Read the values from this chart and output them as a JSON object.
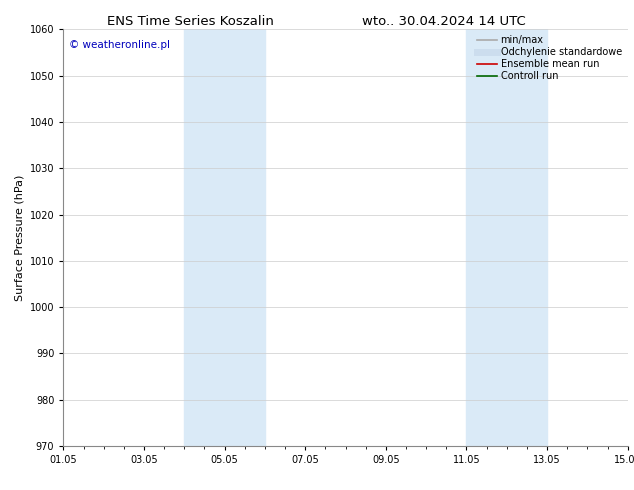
{
  "title_left": "ENS Time Series Koszalin",
  "title_right": "wto.. 30.04.2024 14 UTC",
  "ylabel": "Surface Pressure (hPa)",
  "ylim": [
    970,
    1060
  ],
  "yticks": [
    970,
    980,
    990,
    1000,
    1010,
    1020,
    1030,
    1040,
    1050,
    1060
  ],
  "xlim_start": 0,
  "xlim_end": 14,
  "xtick_labels": [
    "01.05",
    "03.05",
    "05.05",
    "07.05",
    "09.05",
    "11.05",
    "13.05",
    "15.05"
  ],
  "xtick_positions": [
    0,
    2,
    4,
    6,
    8,
    10,
    12,
    14
  ],
  "shade_bands": [
    {
      "x_start": 3.0,
      "x_end": 5.0
    },
    {
      "x_start": 10.0,
      "x_end": 12.0
    }
  ],
  "shade_color": "#daeaf7",
  "watermark_text": "© weatheronline.pl",
  "watermark_color": "#0000bb",
  "legend_entries": [
    {
      "label": "min/max",
      "color": "#aaaaaa",
      "lw": 1.2,
      "style": "-"
    },
    {
      "label": "Odchylenie standardowe",
      "color": "#ccddee",
      "lw": 5,
      "style": "-"
    },
    {
      "label": "Ensemble mean run",
      "color": "#cc0000",
      "lw": 1.2,
      "style": "-"
    },
    {
      "label": "Controll run",
      "color": "#006600",
      "lw": 1.2,
      "style": "-"
    }
  ],
  "bg_color": "#ffffff",
  "grid_color": "#cccccc",
  "title_fontsize": 9.5,
  "tick_fontsize": 7,
  "ylabel_fontsize": 8,
  "watermark_fontsize": 7.5,
  "legend_fontsize": 7
}
